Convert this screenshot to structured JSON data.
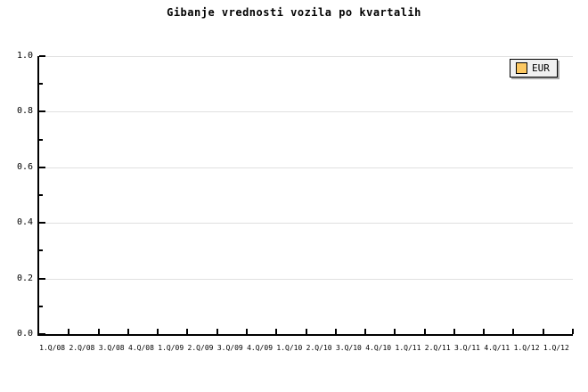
{
  "title": "Gibanje vrednosti vozila po kvartalih",
  "legend": {
    "label": "EUR",
    "swatch_color": "#fcc862",
    "background": "#f0f0f0",
    "border_color": "#000000",
    "shadow_color": "#a8a8a8",
    "position": "top-right"
  },
  "colors": {
    "background": "#ffffff",
    "axis": "#000000",
    "gridline": "#e0e0e0",
    "text": "#000000"
  },
  "chart_data": {
    "type": "bar",
    "title": "Gibanje vrednosti vozila po kvartalih",
    "xlabel": "",
    "ylabel": "",
    "categories": [
      "1.Q/08",
      "2.Q/08",
      "3.Q/08",
      "4.Q/08",
      "1.Q/09",
      "2.Q/09",
      "3.Q/09",
      "4.Q/09",
      "1.Q/10",
      "2.Q/10",
      "3.Q/10",
      "4.Q/10",
      "1.Q/11",
      "2.Q/11",
      "3.Q/11",
      "4.Q/11",
      "1.Q/12",
      "1.Q/12"
    ],
    "series": [
      {
        "name": "EUR",
        "color": "#fcc862",
        "values": []
      }
    ],
    "ylim": [
      0.0,
      1.0
    ],
    "y_major_step": 0.2,
    "y_minor_step": 0.1,
    "y_tick_labels": [
      "0.0",
      "0.2",
      "0.4",
      "0.6",
      "0.8",
      "1.0"
    ],
    "grid": true,
    "gridlines": "horizontal-major-only",
    "legend_position": "top-right",
    "plotted_points": "none (empty plot area)"
  }
}
